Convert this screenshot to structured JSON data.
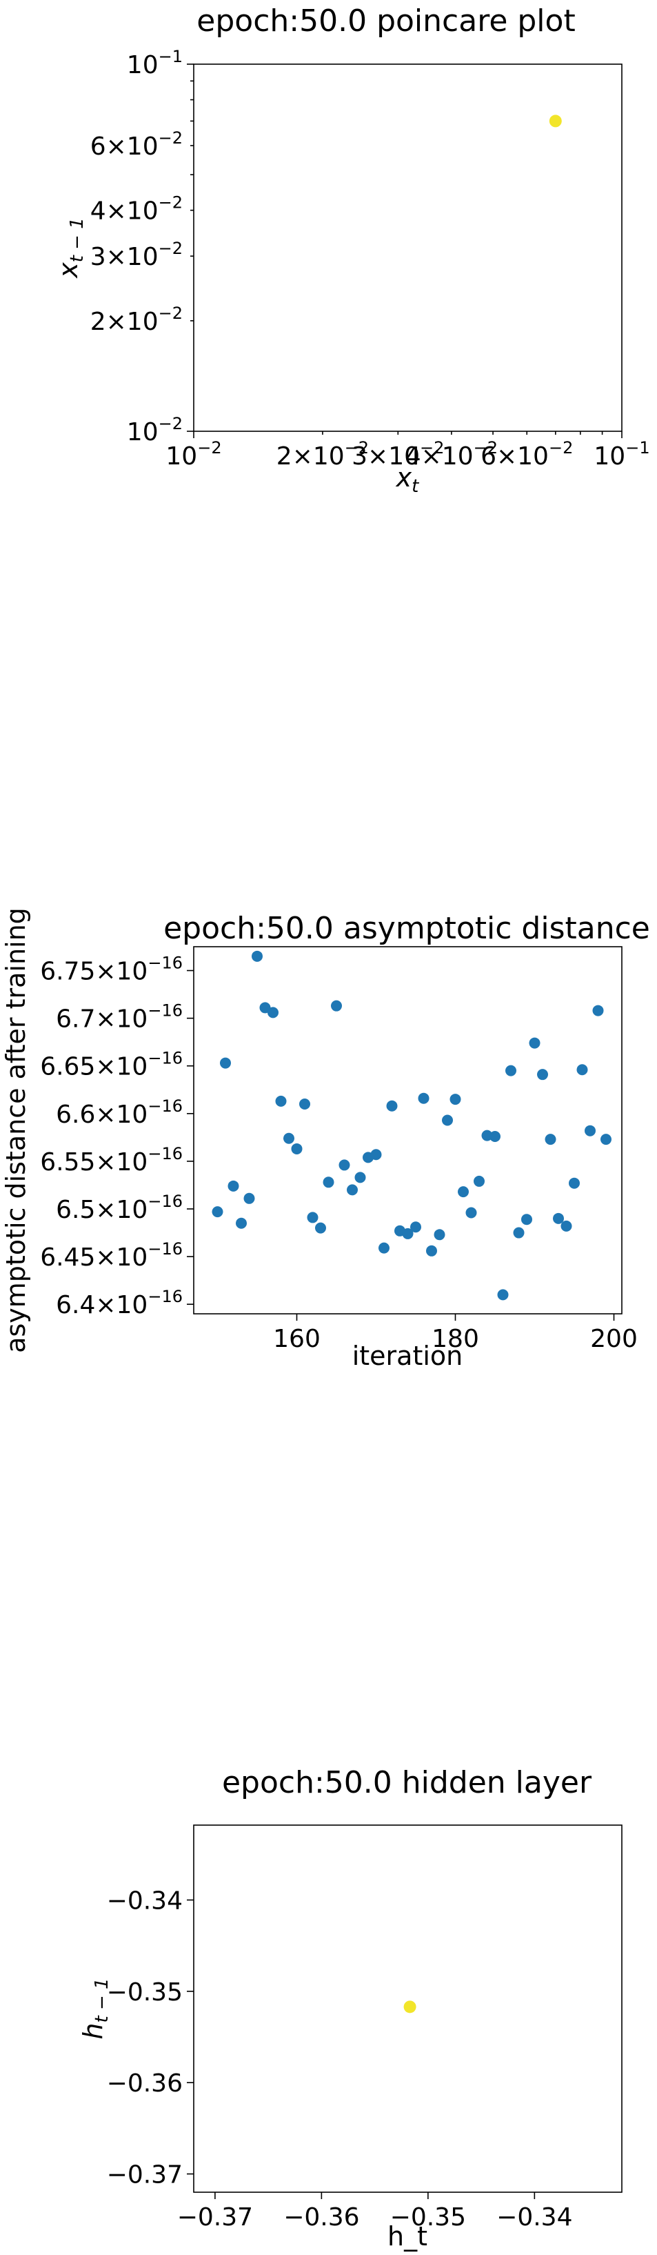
{
  "chart_data": [
    {
      "type": "scatter",
      "title": "epoch:50.0 poincare plot",
      "xlabel": "x_t",
      "ylabel": "x_{t-1}",
      "xscale": "log",
      "yscale": "log",
      "xlim": [
        0.01,
        0.1
      ],
      "ylim": [
        0.01,
        0.1
      ],
      "x_tick_labels": [
        "10^{-2}",
        "2×10^{-2}",
        "3×10^{-2}",
        "4×10^{-2}",
        "6×10^{-2}",
        "10^{-1}"
      ],
      "y_tick_labels": [
        "10^{-2}",
        "2×10^{-2}",
        "3×10^{-2}",
        "4×10^{-2}",
        "6×10^{-2}",
        "10^{-1}"
      ],
      "point_color": "#f2e52a",
      "points": [
        {
          "x": 0.07,
          "y": 0.07
        }
      ]
    },
    {
      "type": "scatter",
      "title": "epoch:50.0 asymptotic distance",
      "xlabel": "iteration",
      "ylabel": "asymptotic distance after training",
      "xlim": [
        147,
        201
      ],
      "ylim": [
        6.39,
        6.775
      ],
      "y_exponent": "×10^{-16}",
      "x_ticks": [
        160,
        180,
        200
      ],
      "y_ticks": [
        6.4,
        6.45,
        6.5,
        6.55,
        6.6,
        6.65,
        6.7,
        6.75
      ],
      "point_color": "#1f77b4",
      "x": [
        150,
        151,
        152,
        153,
        154,
        155,
        156,
        157,
        158,
        159,
        160,
        161,
        162,
        163,
        164,
        165,
        166,
        167,
        168,
        169,
        170,
        171,
        172,
        173,
        174,
        175,
        176,
        177,
        178,
        179,
        180,
        181,
        182,
        183,
        184,
        185,
        186,
        187,
        188,
        189,
        190,
        191,
        192,
        193,
        194,
        195,
        196,
        197,
        198,
        199
      ],
      "y": [
        6.497,
        6.653,
        6.524,
        6.485,
        6.511,
        6.765,
        6.711,
        6.706,
        6.613,
        6.574,
        6.563,
        6.61,
        6.491,
        6.48,
        6.528,
        6.713,
        6.546,
        6.52,
        6.533,
        6.554,
        6.557,
        6.459,
        6.608,
        6.477,
        6.474,
        6.481,
        6.616,
        6.456,
        6.473,
        6.593,
        6.615,
        6.518,
        6.496,
        6.529,
        6.577,
        6.576,
        6.41,
        6.645,
        6.475,
        6.489,
        6.674,
        6.641,
        6.573,
        6.49,
        6.482,
        6.527,
        6.646,
        6.582,
        6.708,
        6.573
      ]
    },
    {
      "type": "scatter",
      "title": "epoch:50.0 hidden layer",
      "xlabel": "h_t",
      "ylabel": "h_{t-1}",
      "xlim": [
        -0.372,
        -0.3318
      ],
      "ylim": [
        -0.372,
        -0.3318
      ],
      "x_ticks": [
        -0.37,
        -0.36,
        -0.35,
        -0.34
      ],
      "y_ticks": [
        -0.37,
        -0.36,
        -0.35,
        -0.34
      ],
      "point_color": "#f2e52a",
      "points": [
        {
          "x": -0.3517,
          "y": -0.3517
        }
      ]
    }
  ]
}
